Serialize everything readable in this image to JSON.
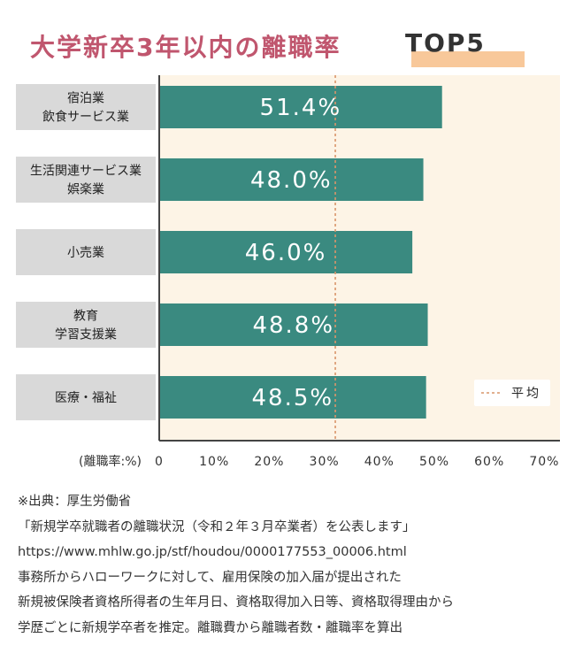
{
  "title": {
    "main": "大学新卒3年以内の離職率",
    "highlight": "TOP5"
  },
  "chart_data": {
    "type": "bar",
    "orientation": "horizontal",
    "categories": [
      [
        "宿泊業",
        "飲食サービス業"
      ],
      [
        "生活関連サービス業",
        "娯楽業"
      ],
      [
        "小売業"
      ],
      [
        "教育",
        "学習支援業"
      ],
      [
        "医療・福祉"
      ]
    ],
    "values": [
      51.4,
      48.0,
      46.0,
      48.8,
      48.5
    ],
    "value_labels": [
      "51.4%",
      "48.0%",
      "46.0%",
      "48.8%",
      "48.5%"
    ],
    "xlabel": "(離職率:%)",
    "xticks": [
      "0",
      "10%",
      "20%",
      "30%",
      "40%",
      "50%",
      "60%",
      "70%"
    ],
    "xlim": [
      0,
      70
    ],
    "average_line": 32,
    "legend": {
      "label": "平均",
      "placement": "bottom-right"
    },
    "colors": {
      "bar": "#3a8a80",
      "plot_bg": "#fdf4e6",
      "label_bg": "#d9d9d9",
      "average": "#d9956a"
    }
  },
  "notes": [
    "※出典：厚生労働省",
    "「新規学卒就職者の離職状況（令和２年３月卒業者）を公表します」",
    "https://www.mhlw.go.jp/stf/houdou/0000177553_00006.html",
    "事務所からハローワークに対して、雇用保険の加入届が提出された",
    "新規被保険者資格所得者の生年月日、資格取得加入日等、資格取得理由から",
    "学歴ごとに新規学卒者を推定。離職費から離職者数・離職率を算出"
  ]
}
